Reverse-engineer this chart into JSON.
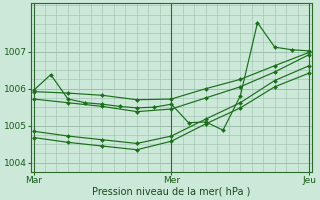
{
  "bg_color": "#cce8d8",
  "grid_color": "#9dbfad",
  "line_color": "#1a6e1a",
  "xlabel": "Pression niveau de la mer( hPa )",
  "xtick_labels": [
    "Mar",
    "Mer",
    "Jeu"
  ],
  "xtick_positions": [
    0,
    48,
    96
  ],
  "ylim": [
    1003.75,
    1008.3
  ],
  "yticks": [
    1004,
    1005,
    1006,
    1007
  ],
  "lines": [
    {
      "x": [
        0,
        6,
        12,
        18,
        24,
        30,
        36,
        42,
        48,
        54,
        60,
        66,
        72,
        78,
        84,
        90,
        96
      ],
      "y": [
        1005.95,
        1006.38,
        1005.72,
        1005.62,
        1005.58,
        1005.52,
        1005.48,
        1005.5,
        1005.58,
        1005.08,
        1005.1,
        1004.88,
        1005.8,
        1007.78,
        1007.12,
        1007.05,
        1007.02
      ]
    },
    {
      "x": [
        0,
        12,
        24,
        36,
        48,
        60,
        72,
        84,
        96
      ],
      "y": [
        1005.92,
        1005.88,
        1005.82,
        1005.7,
        1005.72,
        1006.0,
        1006.25,
        1006.62,
        1006.98
      ]
    },
    {
      "x": [
        0,
        12,
        24,
        36,
        48,
        60,
        72,
        84,
        96
      ],
      "y": [
        1005.72,
        1005.62,
        1005.52,
        1005.38,
        1005.45,
        1005.75,
        1006.05,
        1006.45,
        1006.92
      ]
    },
    {
      "x": [
        0,
        12,
        24,
        36,
        48,
        60,
        72,
        84,
        96
      ],
      "y": [
        1004.85,
        1004.72,
        1004.62,
        1004.52,
        1004.72,
        1005.18,
        1005.62,
        1006.22,
        1006.62
      ]
    },
    {
      "x": [
        0,
        12,
        24,
        36,
        48,
        60,
        72,
        84,
        96
      ],
      "y": [
        1004.68,
        1004.55,
        1004.45,
        1004.35,
        1004.58,
        1005.05,
        1005.48,
        1006.05,
        1006.42
      ]
    }
  ]
}
